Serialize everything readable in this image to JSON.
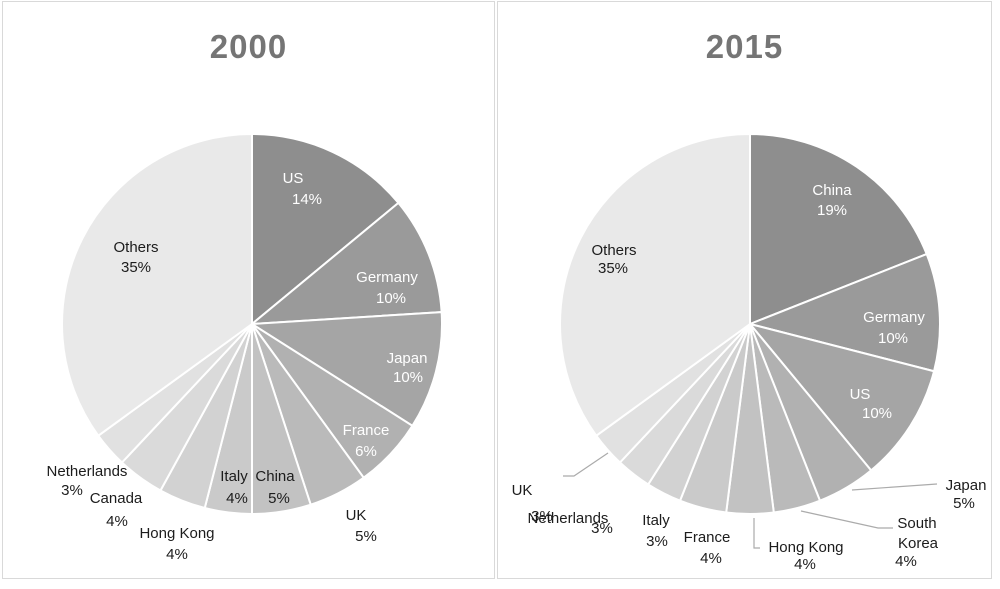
{
  "style": {
    "background": "#ffffff",
    "panel_border_color": "#d9d9d9",
    "title_color": "#757575",
    "separator_color": "#ffffff",
    "leader_line_color": "#ababab",
    "label_dark_color": "#1c1c1c",
    "label_light_color": "#ffffff"
  },
  "chart_data": [
    {
      "type": "pie",
      "title": "2000",
      "unit": "percent",
      "start_angle_deg": 0,
      "direction": "clockwise",
      "legend": "none",
      "labels": [
        "US",
        "Germany",
        "Japan",
        "France",
        "UK",
        "China",
        "Italy",
        "Hong Kong",
        "Canada",
        "Netherlands",
        "Others"
      ],
      "values": [
        14,
        10,
        10,
        6,
        5,
        5,
        4,
        4,
        4,
        3,
        35
      ],
      "label_texts": [
        "US 14%",
        "Germany 10%",
        "Japan 10%",
        "France 6%",
        "UK 5%",
        "China 5%",
        "Italy 4%",
        "Hong Kong 4%",
        "Canada 4%",
        "Netherlands 3%",
        "Others 35%"
      ],
      "slice_colors": [
        "#8e8e8e",
        "#9a9a9a",
        "#a5a5a5",
        "#b1b1b1",
        "#bababa",
        "#c2c2c2",
        "#cacaca",
        "#d2d2d2",
        "#dadada",
        "#e1e1e1",
        "#e9e9e9"
      ]
    },
    {
      "type": "pie",
      "title": "2015",
      "unit": "percent",
      "start_angle_deg": 0,
      "direction": "clockwise",
      "legend": "none",
      "labels": [
        "China",
        "Germany",
        "US",
        "Japan",
        "South Korea",
        "Hong Kong",
        "France",
        "Italy",
        "Netherlands",
        "UK",
        "Others"
      ],
      "values": [
        19,
        10,
        10,
        5,
        4,
        4,
        4,
        3,
        3,
        3,
        35
      ],
      "label_texts": [
        "China 19%",
        "Germany 10%",
        "US 10%",
        "Japan 5%",
        "South Korea 4%",
        "Hong Kong 4%",
        "France 4%",
        "Italy 3%",
        "Netherlands 3%",
        "UK 3%",
        "Others 35%"
      ],
      "slice_colors": [
        "#8e8e8e",
        "#9a9a9a",
        "#a5a5a5",
        "#b1b1b1",
        "#bababa",
        "#c2c2c2",
        "#cacaca",
        "#d2d2d2",
        "#dadada",
        "#e1e1e1",
        "#e9e9e9"
      ]
    }
  ]
}
